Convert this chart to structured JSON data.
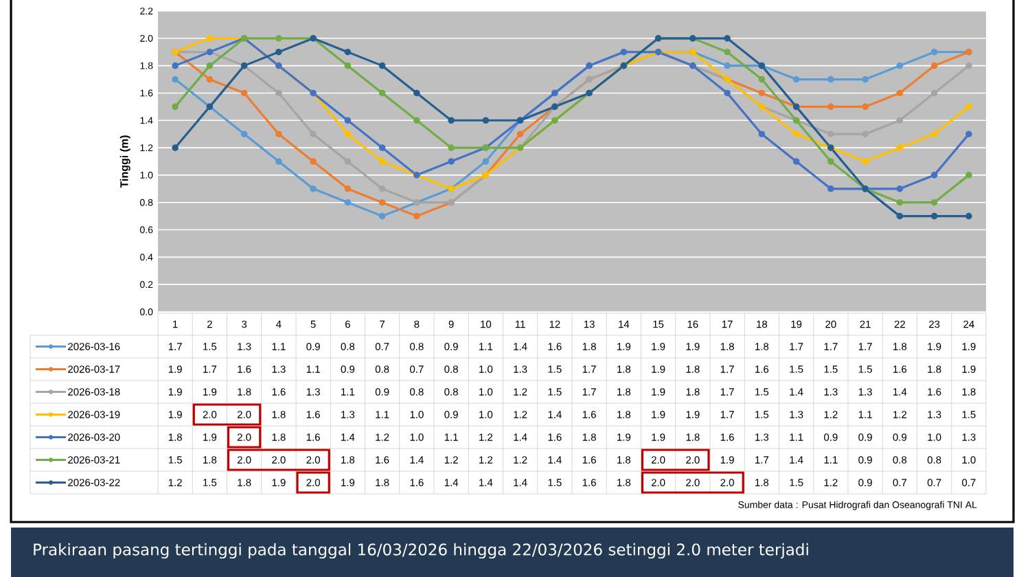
{
  "chart_data": {
    "type": "line",
    "ylabel": "Tinggi (m)",
    "categories": [
      "1",
      "2",
      "3",
      "4",
      "5",
      "6",
      "7",
      "8",
      "9",
      "10",
      "11",
      "12",
      "13",
      "14",
      "15",
      "16",
      "17",
      "18",
      "19",
      "20",
      "21",
      "22",
      "23",
      "24"
    ],
    "series": [
      {
        "name": "2026-03-16",
        "color": "#5b9bd5",
        "values": [
          1.7,
          1.5,
          1.3,
          1.1,
          0.9,
          0.8,
          0.7,
          0.8,
          0.9,
          1.1,
          1.4,
          1.6,
          1.8,
          1.9,
          1.9,
          1.9,
          1.8,
          1.8,
          1.7,
          1.7,
          1.7,
          1.8,
          1.9,
          1.9
        ],
        "value_labels": [
          "1.7",
          "1.5",
          "1.3",
          "1.1",
          "0.9",
          "0.8",
          "0.7",
          "0.8",
          "0.9",
          "1.1",
          "1.4",
          "1.6",
          "1.8",
          "1.9",
          "1.9",
          "1.9",
          "1.8",
          "1.8",
          "1.7",
          "1.7",
          "1.7",
          "1.8",
          "1.9",
          "1.9"
        ]
      },
      {
        "name": "2026-03-17",
        "color": "#ed7d31",
        "values": [
          1.9,
          1.7,
          1.6,
          1.3,
          1.1,
          0.9,
          0.8,
          0.7,
          0.8,
          1.0,
          1.3,
          1.5,
          1.7,
          1.8,
          1.9,
          1.8,
          1.7,
          1.6,
          1.5,
          1.5,
          1.5,
          1.6,
          1.8,
          1.9
        ],
        "value_labels": [
          "1.9",
          "1.7",
          "1.6",
          "1.3",
          "1.1",
          "0.9",
          "0.8",
          "0.7",
          "0.8",
          "1.0",
          "1.3",
          "1.5",
          "1.7",
          "1.8",
          "1.9",
          "1.8",
          "1.7",
          "1.6",
          "1.5",
          "1.5",
          "1.5",
          "1.6",
          "1.8",
          "1.9"
        ]
      },
      {
        "name": "2026-03-18",
        "color": "#a5a5a5",
        "values": [
          1.9,
          1.9,
          1.8,
          1.6,
          1.3,
          1.1,
          0.9,
          0.8,
          0.8,
          1.0,
          1.2,
          1.5,
          1.7,
          1.8,
          1.9,
          1.8,
          1.7,
          1.5,
          1.4,
          1.3,
          1.3,
          1.4,
          1.6,
          1.8
        ],
        "value_labels": [
          "1.9",
          "1.9",
          "1.8",
          "1.6",
          "1.3",
          "1.1",
          "0.9",
          "0.8",
          "0.8",
          "1.0",
          "1.2",
          "1.5",
          "1.7",
          "1.8",
          "1.9",
          "1.8",
          "1.7",
          "1.5",
          "1.4",
          "1.3",
          "1.3",
          "1.4",
          "1.6",
          "1.8"
        ]
      },
      {
        "name": "2026-03-19",
        "color": "#ffc000",
        "values": [
          1.9,
          2.0,
          2.0,
          1.8,
          1.6,
          1.3,
          1.1,
          1.0,
          0.9,
          1.0,
          1.2,
          1.4,
          1.6,
          1.8,
          1.9,
          1.9,
          1.7,
          1.5,
          1.3,
          1.2,
          1.1,
          1.2,
          1.3,
          1.5
        ],
        "value_labels": [
          "1.9",
          "2.0",
          "2.0",
          "1.8",
          "1.6",
          "1.3",
          "1.1",
          "1.0",
          "0.9",
          "1.0",
          "1.2",
          "1.4",
          "1.6",
          "1.8",
          "1.9",
          "1.9",
          "1.7",
          "1.5",
          "1.3",
          "1.2",
          "1.1",
          "1.2",
          "1.3",
          "1.5"
        ]
      },
      {
        "name": "2026-03-20",
        "color": "#4472c4",
        "values": [
          1.8,
          1.9,
          2.0,
          1.8,
          1.6,
          1.4,
          1.2,
          1.0,
          1.1,
          1.2,
          1.4,
          1.6,
          1.8,
          1.9,
          1.9,
          1.8,
          1.6,
          1.3,
          1.1,
          0.9,
          0.9,
          0.9,
          1.0,
          1.3
        ],
        "value_labels": [
          "1.8",
          "1.9",
          "2.0",
          "1.8",
          "1.6",
          "1.4",
          "1.2",
          "1.0",
          "1.1",
          "1.2",
          "1.4",
          "1.6",
          "1.8",
          "1.9",
          "1.9",
          "1.8",
          "1.6",
          "1.3",
          "1.1",
          "0.9",
          "0.9",
          "0.9",
          "1.0",
          "1.3"
        ]
      },
      {
        "name": "2026-03-21",
        "color": "#70ad47",
        "values": [
          1.5,
          1.8,
          2.0,
          2.0,
          2.0,
          1.8,
          1.6,
          1.4,
          1.2,
          1.2,
          1.2,
          1.4,
          1.6,
          1.8,
          2.0,
          2.0,
          1.9,
          1.7,
          1.4,
          1.1,
          0.9,
          0.8,
          0.8,
          1.0
        ],
        "value_labels": [
          "1.5",
          "1.8",
          "2.0",
          "2.0",
          "2.0",
          "1.8",
          "1.6",
          "1.4",
          "1.2",
          "1.2",
          "1.2",
          "1.4",
          "1.6",
          "1.8",
          "2.0",
          "2.0",
          "1.9",
          "1.7",
          "1.4",
          "1.1",
          "0.9",
          "0.8",
          "0.8",
          "1.0"
        ]
      },
      {
        "name": "2026-03-22",
        "color": "#255e91",
        "values": [
          1.2,
          1.5,
          1.8,
          1.9,
          2.0,
          1.9,
          1.8,
          1.6,
          1.4,
          1.4,
          1.4,
          1.5,
          1.6,
          1.8,
          2.0,
          2.0,
          2.0,
          1.8,
          1.5,
          1.2,
          0.9,
          0.7,
          0.7,
          0.7
        ],
        "value_labels": [
          "1.2",
          "1.5",
          "1.8",
          "1.9",
          "2.0",
          "1.9",
          "1.8",
          "1.6",
          "1.4",
          "1.4",
          "1.4",
          "1.5",
          "1.6",
          "1.8",
          "2.0",
          "2.0",
          "2.0",
          "1.8",
          "1.5",
          "1.2",
          "0.9",
          "0.7",
          "0.7",
          "0.7"
        ]
      }
    ],
    "ylim": [
      0,
      2.2
    ],
    "yticks": [
      {
        "value": 0,
        "label": "0.0"
      },
      0.2,
      0.4,
      0.6,
      0.8,
      {
        "value": 1,
        "label": "1.0"
      },
      1.2,
      1.4,
      1.6,
      1.8,
      {
        "value": 2,
        "label": "2.0"
      },
      2.2
    ],
    "grid": "y",
    "legend": "bottom",
    "marker": "circle",
    "line_style": "solid",
    "annotations": [
      "Sumber data : Pusat Hidrografi dan Oseanografi TNI AL",
      "Prakiraan pasang tertinggi pada tanggal 16/03/2026 hingga 22/03/2026 setinggi 2.0 meter terjadi"
    ]
  }
}
